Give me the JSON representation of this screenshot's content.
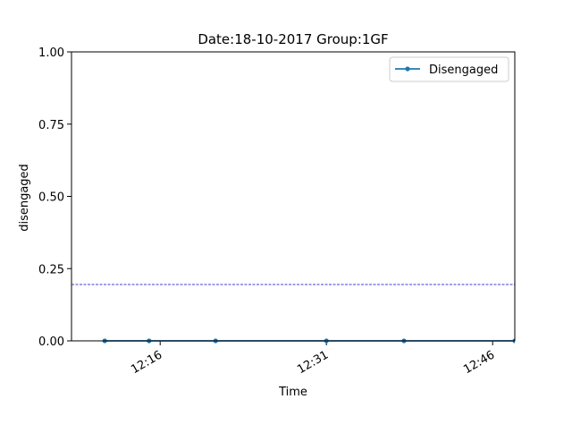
{
  "chart_data": {
    "type": "line",
    "title": "Date:18-10-2017  Group:1GF",
    "xlabel": "Time",
    "ylabel": "disengaged",
    "x_is_time": true,
    "xlim": [
      "12:08",
      "12:48"
    ],
    "ylim": [
      0,
      1
    ],
    "yticks": [
      0,
      0.25,
      0.5,
      0.75,
      1.0
    ],
    "ytick_labels": [
      "0.00",
      "0.25",
      "0.50",
      "0.75",
      "1.00"
    ],
    "xticks": [
      "12:16",
      "12:31",
      "12:46"
    ],
    "series": [
      {
        "name": "Disengaged",
        "color": "#1f77b4",
        "marker": "dot",
        "points": [
          {
            "x": "12:11",
            "y": 0
          },
          {
            "x": "12:15",
            "y": 0
          },
          {
            "x": "12:21",
            "y": 0
          },
          {
            "x": "12:31",
            "y": 0
          },
          {
            "x": "12:38",
            "y": 0
          },
          {
            "x": "12:48",
            "y": 0
          }
        ]
      }
    ],
    "reference_lines": [
      {
        "orientation": "horizontal",
        "y": 0.195,
        "style": "dashed",
        "color": "#0000cc"
      }
    ],
    "grid": false,
    "legend_position": "top-right"
  }
}
